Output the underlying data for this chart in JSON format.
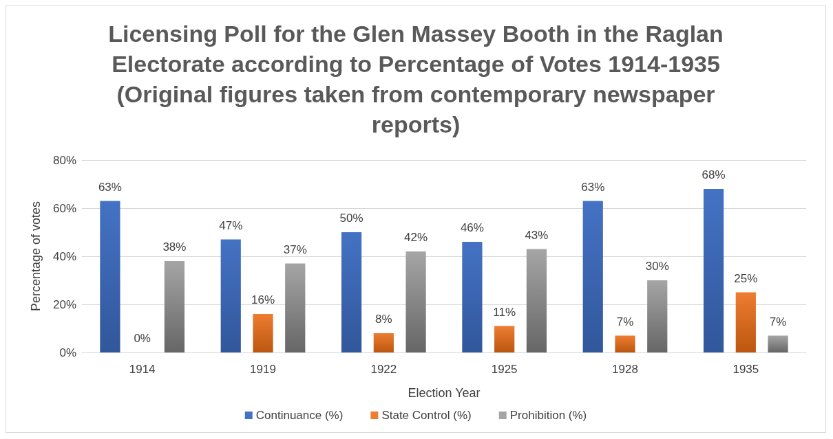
{
  "chart_data": {
    "type": "bar",
    "title": "Licensing Poll for the Glen Massey Booth in the Raglan Electorate according to Percentage of Votes 1914-1935 (Original figures taken from contemporary newspaper reports)",
    "xlabel": "Election Year",
    "ylabel": "Percentage of votes",
    "categories": [
      "1914",
      "1919",
      "1922",
      "1925",
      "1928",
      "1935"
    ],
    "series": [
      {
        "name": "Continuance (%)",
        "color": "#4472c4",
        "values": [
          63,
          47,
          50,
          46,
          63,
          68
        ],
        "value_labels": [
          "63%",
          "47%",
          "50%",
          "46%",
          "63%",
          "68%"
        ]
      },
      {
        "name": "State Control (%)",
        "color": "#ed7d31",
        "values": [
          0,
          16,
          8,
          11,
          7,
          25
        ],
        "value_labels": [
          "0%",
          "16%",
          "8%",
          "11%",
          "7%",
          "25%"
        ]
      },
      {
        "name": "Prohibition (%)",
        "color": "#a5a5a5",
        "values": [
          38,
          37,
          42,
          43,
          30,
          7
        ],
        "value_labels": [
          "38%",
          "37%",
          "42%",
          "43%",
          "30%",
          "7%"
        ]
      }
    ],
    "ylim": [
      0,
      80
    ],
    "yticks": [
      {
        "value": 0,
        "label": "0%"
      },
      {
        "value": 20,
        "label": "20%"
      },
      {
        "value": 40,
        "label": "40%"
      },
      {
        "value": 60,
        "label": "60%"
      },
      {
        "value": 80,
        "label": "80%"
      }
    ],
    "grid": "y",
    "legend": "bottom"
  }
}
